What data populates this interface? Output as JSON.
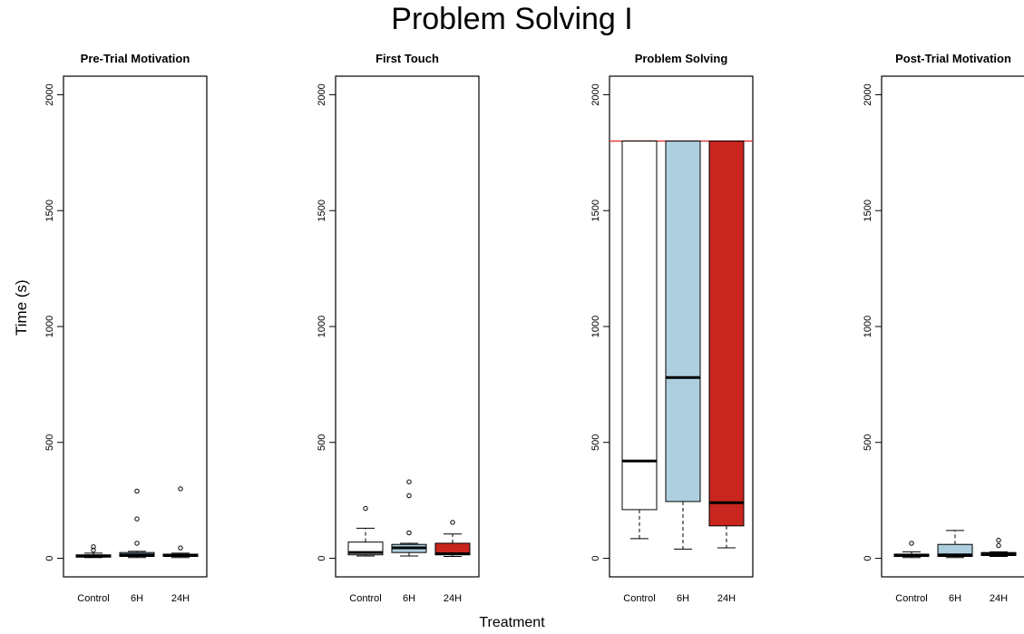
{
  "figure": {
    "title": "Problem Solving I",
    "ylabel": "Time (s)",
    "xlabel": "Treatment"
  },
  "colors": {
    "control": "#ffffff",
    "six_hour": "#aecfdf",
    "twentyfour_hour": "#c8261f",
    "cap_line": "#e0413a",
    "ink": "#000000"
  },
  "chart_data": [
    {
      "type": "box",
      "title": "Pre-Trial Motivation",
      "categories": [
        "Control",
        "6H",
        "24H"
      ],
      "ylim": [
        -80,
        2080
      ],
      "yticks": [
        0,
        500,
        1000,
        1500,
        2000
      ],
      "series": [
        {
          "q1": 5,
          "median": 10,
          "q3": 15,
          "whisker_low": 3,
          "whisker_high": 22,
          "outliers": [
            35,
            50
          ]
        },
        {
          "q1": 8,
          "median": 15,
          "q3": 25,
          "whisker_low": 3,
          "whisker_high": 30,
          "outliers": [
            65,
            170,
            290
          ]
        },
        {
          "q1": 8,
          "median": 12,
          "q3": 18,
          "whisker_low": 3,
          "whisker_high": 22,
          "outliers": [
            45,
            300
          ]
        }
      ]
    },
    {
      "type": "box",
      "title": "First Touch",
      "categories": [
        "Control",
        "6H",
        "24H"
      ],
      "ylim": [
        -80,
        2080
      ],
      "yticks": [
        0,
        500,
        1000,
        1500,
        2000
      ],
      "series": [
        {
          "q1": 15,
          "median": 25,
          "q3": 70,
          "whisker_low": 10,
          "whisker_high": 130,
          "outliers": [
            215
          ]
        },
        {
          "q1": 25,
          "median": 45,
          "q3": 60,
          "whisker_low": 10,
          "whisker_high": 65,
          "outliers": [
            110,
            270,
            330
          ]
        },
        {
          "q1": 15,
          "median": 20,
          "q3": 65,
          "whisker_low": 8,
          "whisker_high": 105,
          "outliers": [
            155
          ]
        }
      ]
    },
    {
      "type": "box",
      "title": "Problem Solving",
      "categories": [
        "Control",
        "6H",
        "24H"
      ],
      "ylim": [
        -80,
        2080
      ],
      "yticks": [
        0,
        500,
        1000,
        1500,
        2000
      ],
      "cap_value": 1800,
      "series": [
        {
          "q1": 210,
          "median": 420,
          "q3": 1800,
          "whisker_low": 85,
          "whisker_high": 1800,
          "outliers": []
        },
        {
          "q1": 245,
          "median": 780,
          "q3": 1800,
          "whisker_low": 40,
          "whisker_high": 1800,
          "outliers": []
        },
        {
          "q1": 140,
          "median": 240,
          "q3": 1800,
          "whisker_low": 45,
          "whisker_high": 1800,
          "outliers": []
        }
      ]
    },
    {
      "type": "box",
      "title": "Post-Trial Motivation",
      "categories": [
        "Control",
        "6H",
        "24H"
      ],
      "ylim": [
        -80,
        2080
      ],
      "yticks": [
        0,
        500,
        1000,
        1500,
        2000
      ],
      "series": [
        {
          "q1": 8,
          "median": 12,
          "q3": 18,
          "whisker_low": 3,
          "whisker_high": 28,
          "outliers": [
            65
          ]
        },
        {
          "q1": 8,
          "median": 15,
          "q3": 60,
          "whisker_low": 3,
          "whisker_high": 120,
          "outliers": []
        },
        {
          "q1": 12,
          "median": 18,
          "q3": 25,
          "whisker_low": 8,
          "whisker_high": 28,
          "outliers": [
            55,
            78
          ]
        }
      ]
    }
  ]
}
